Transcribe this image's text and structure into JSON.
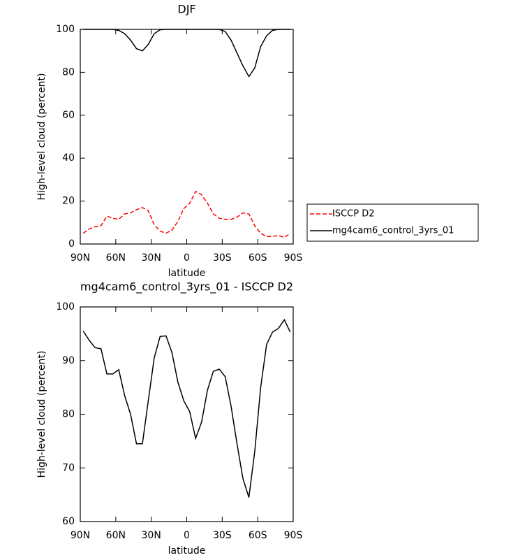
{
  "chart_data": [
    {
      "type": "line",
      "title": "DJF",
      "x_label": "latitude",
      "y_label": "High-level cloud (percent)",
      "x": [
        87.5,
        82.5,
        77.5,
        72.5,
        67.5,
        62.5,
        57.5,
        52.5,
        47.5,
        42.5,
        37.5,
        32.5,
        27.5,
        22.5,
        17.5,
        12.5,
        7.5,
        2.5,
        -2.5,
        -7.5,
        -12.5,
        -17.5,
        -22.5,
        -27.5,
        -32.5,
        -37.5,
        -42.5,
        -47.5,
        -52.5,
        -57.5,
        -62.5,
        -67.5,
        -72.5,
        -77.5,
        -82.5,
        -87.5
      ],
      "xlim": [
        90,
        -90
      ],
      "xticks": [
        {
          "value": 90,
          "label": "90N"
        },
        {
          "value": 60,
          "label": "60N"
        },
        {
          "value": 30,
          "label": "30N"
        },
        0,
        {
          "value": -30,
          "label": "30S"
        },
        {
          "value": -60,
          "label": "60S"
        },
        {
          "value": -90,
          "label": "90S"
        }
      ],
      "ylim": [
        0,
        100
      ],
      "yticks": [
        0,
        20,
        40,
        60,
        80,
        100
      ],
      "legend": "right",
      "series": [
        {
          "name": "ISCCP D2",
          "color": "#ff0000",
          "dash": true,
          "values": [
            5,
            7,
            8,
            8.5,
            13,
            12,
            11.5,
            14,
            14.5,
            16,
            17,
            15.5,
            9,
            6,
            5,
            6.5,
            10.5,
            16.5,
            19,
            24.5,
            23,
            19,
            14,
            12,
            11.5,
            11.5,
            12.5,
            14.5,
            14,
            8.5,
            5,
            3.5,
            3.5,
            4,
            3,
            5
          ]
        },
        {
          "name": "mg4cam6_control_3yrs_01",
          "color": "#000000",
          "dash": false,
          "values": [
            100,
            100,
            100,
            100,
            100,
            100,
            99.5,
            98,
            95,
            91,
            90,
            93,
            98,
            99.8,
            100,
            100,
            100,
            100,
            100,
            100,
            100,
            100,
            100,
            100,
            99,
            95,
            89,
            83,
            78,
            82,
            92,
            97,
            99.5,
            100,
            100,
            100
          ]
        }
      ]
    },
    {
      "type": "line",
      "title": "mg4cam6_control_3yrs_01 - ISCCP D2",
      "x_label": "latitude",
      "y_label": "High-level cloud (percent)",
      "x": [
        87.5,
        82.5,
        77.5,
        72.5,
        67.5,
        62.5,
        57.5,
        52.5,
        47.5,
        42.5,
        37.5,
        32.5,
        27.5,
        22.5,
        17.5,
        12.5,
        7.5,
        2.5,
        -2.5,
        -7.5,
        -12.5,
        -17.5,
        -22.5,
        -27.5,
        -32.5,
        -37.5,
        -42.5,
        -47.5,
        -52.5,
        -57.5,
        -62.5,
        -67.5,
        -72.5,
        -77.5,
        -82.5,
        -87.5
      ],
      "xlim": [
        90,
        -90
      ],
      "xticks": [
        {
          "value": 90,
          "label": "90N"
        },
        {
          "value": 60,
          "label": "60N"
        },
        {
          "value": 30,
          "label": "30N"
        },
        0,
        {
          "value": -30,
          "label": "30S"
        },
        {
          "value": -60,
          "label": "60S"
        },
        {
          "value": -90,
          "label": "90S"
        }
      ],
      "ylim": [
        60,
        100
      ],
      "yticks": [
        60,
        70,
        80,
        90,
        100
      ],
      "series": [
        {
          "color": "#000000",
          "dash": false,
          "values": [
            95.5,
            93.8,
            92.4,
            92.2,
            87.5,
            87.5,
            88.3,
            83.5,
            80,
            74.5,
            74.5,
            82.5,
            90.5,
            94.5,
            94.6,
            91.5,
            86,
            82.5,
            80.5,
            75.5,
            78.5,
            84.5,
            88,
            88.4,
            87,
            81.5,
            74.5,
            68,
            64.5,
            73,
            85,
            93,
            95.3,
            96,
            97.6,
            95.3
          ]
        }
      ]
    }
  ]
}
